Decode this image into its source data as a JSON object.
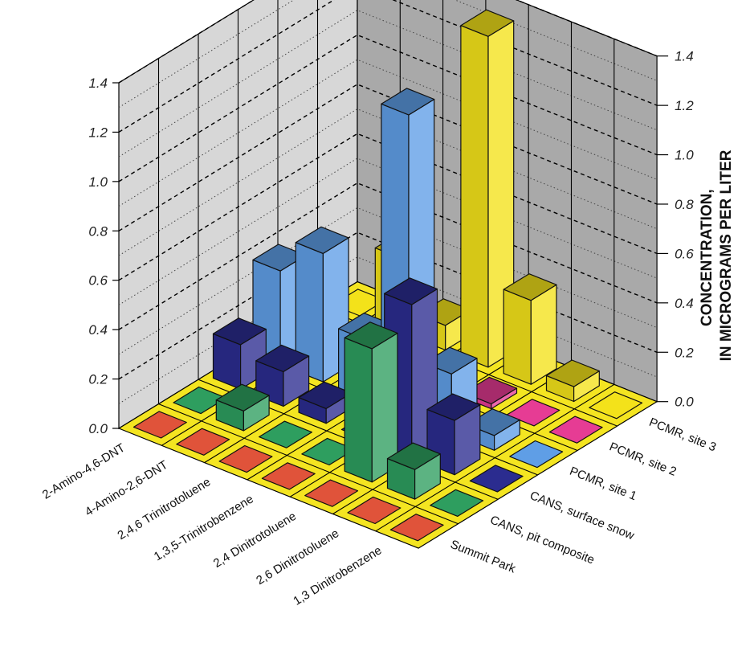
{
  "chart_data": {
    "type": "bar3d",
    "ylabel": [
      "CONCENTRATION,",
      "IN MICROGRAMS PER LITER"
    ],
    "ylim": [
      0,
      1.4
    ],
    "y_ticks": [
      "0.0",
      "0.2",
      "0.4",
      "0.6",
      "0.8",
      "1.0",
      "1.2",
      "1.4"
    ],
    "compounds": [
      "2-Amino-4,6-DNT",
      "4-Amino-2,6-DNT",
      "2,4,6 Trinitrotoluene",
      "1,3,5-Trinitrobenzene",
      "2,4 Dinitrotoluene",
      "2,6 Dinitrotoluene",
      "1,3 Dinitrobenzene"
    ],
    "sites": [
      "Summit Park",
      "CANS, pit composite",
      "CANS, surface snow",
      "PCMR, site 1",
      "PCMR, site 2",
      "PCMR, site 3"
    ],
    "series": [
      {
        "site": "Summit Park",
        "color": "#e0533a",
        "values": [
          0,
          0,
          0,
          0,
          0,
          0,
          0
        ]
      },
      {
        "site": "CANS, pit composite",
        "color": "#2e9e5f",
        "values": [
          0,
          0.08,
          0,
          0,
          0.54,
          0.12,
          0
        ]
      },
      {
        "site": "CANS, surface snow",
        "color": "#2b2c8f",
        "values": [
          0.18,
          0.14,
          0.06,
          0,
          0.62,
          0.22,
          0
        ]
      },
      {
        "site": "PCMR, site 1",
        "color": "#5f9ee6",
        "values": [
          0.38,
          0.52,
          0.24,
          1.22,
          0.24,
          0.06,
          0
        ]
      },
      {
        "site": "PCMR, site 2",
        "color": "#e63c94",
        "values": [
          0,
          0,
          0.02,
          0,
          0.02,
          0,
          0
        ]
      },
      {
        "site": "PCMR, site 3",
        "color": "#f3e21a",
        "values": [
          0,
          0.3,
          0.1,
          1.34,
          0.34,
          0.06,
          0
        ]
      }
    ]
  }
}
